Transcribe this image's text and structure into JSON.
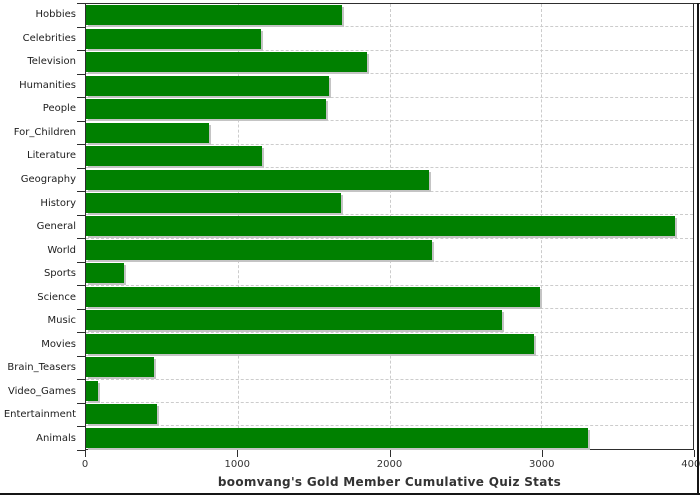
{
  "chart_data": {
    "type": "bar",
    "orientation": "horizontal",
    "title": "boomvang's Gold Member Cumulative Quiz Stats",
    "categories": [
      "Hobbies",
      "Celebrities",
      "Television",
      "Humanities",
      "People",
      "For_Children",
      "Literature",
      "Geography",
      "History",
      "General",
      "World",
      "Sports",
      "Science",
      "Music",
      "Movies",
      "Brain_Teasers",
      "Video_Games",
      "Entertainment",
      "Animals"
    ],
    "values": [
      1690,
      1150,
      1850,
      1600,
      1580,
      810,
      1160,
      2260,
      1680,
      3880,
      2280,
      250,
      2990,
      2740,
      2950,
      450,
      80,
      470,
      3310
    ],
    "xlim": [
      0,
      4000
    ],
    "xticks": [
      0,
      1000,
      2000,
      3000,
      4000
    ],
    "xtick_labels": [
      "0",
      "1000",
      "2000",
      "3000",
      "4000"
    ],
    "gridline_x": [
      1000,
      2000,
      3000
    ],
    "grid": "dashed",
    "legend": "none",
    "colors": {
      "bar": "#008000",
      "bar_shadow": "#c4c4c4",
      "gridline": "#cccccc",
      "frame": "#2e2e2e",
      "label_text": "#1d1d1d",
      "title_text": "#333333",
      "background": "#ffffff"
    }
  }
}
